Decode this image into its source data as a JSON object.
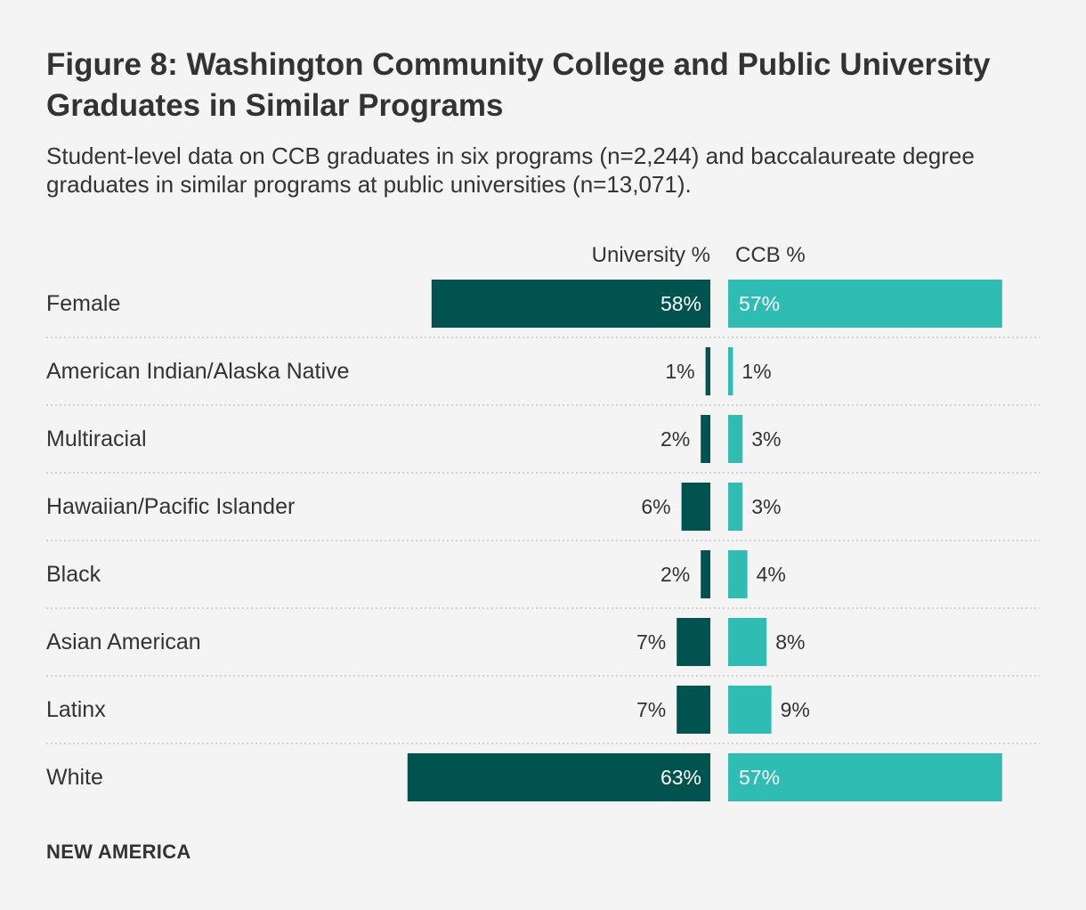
{
  "title": "Figure 8: Washington Community College and Public University Graduates in Similar Programs",
  "subtitle": "Student-level data on CCB graduates in six programs (n=2,244) and baccalaureate degree graduates in similar programs at public universities (n=13,071).",
  "footer": "NEW AMERICA",
  "colors": {
    "university": "#00534e",
    "ccb": "#2ebcb3",
    "text": "#333333",
    "label_inside": "#ffffff",
    "divider": "#c8c8c8"
  },
  "chart_data": {
    "type": "bar",
    "orientation": "horizontal",
    "layout": "butterfly",
    "categories": [
      "Female",
      "American Indian/Alaska Native",
      "Multiracial",
      "Hawaiian/Pacific Islander",
      "Black",
      "Asian American",
      "Latinx",
      "White"
    ],
    "series": [
      {
        "name": "University %",
        "values": [
          58,
          1,
          2,
          6,
          2,
          7,
          7,
          63
        ],
        "labels": [
          "58%",
          "1%",
          "2%",
          "6%",
          "2%",
          "7%",
          "7%",
          "63%"
        ]
      },
      {
        "name": "CCB %",
        "values": [
          57,
          1,
          3,
          3,
          4,
          8,
          9,
          57
        ],
        "labels": [
          "57%",
          "1%",
          "3%",
          "3%",
          "4%",
          "8%",
          "9%",
          "57%"
        ]
      }
    ],
    "unit": "%",
    "xlim": [
      0,
      100
    ]
  }
}
